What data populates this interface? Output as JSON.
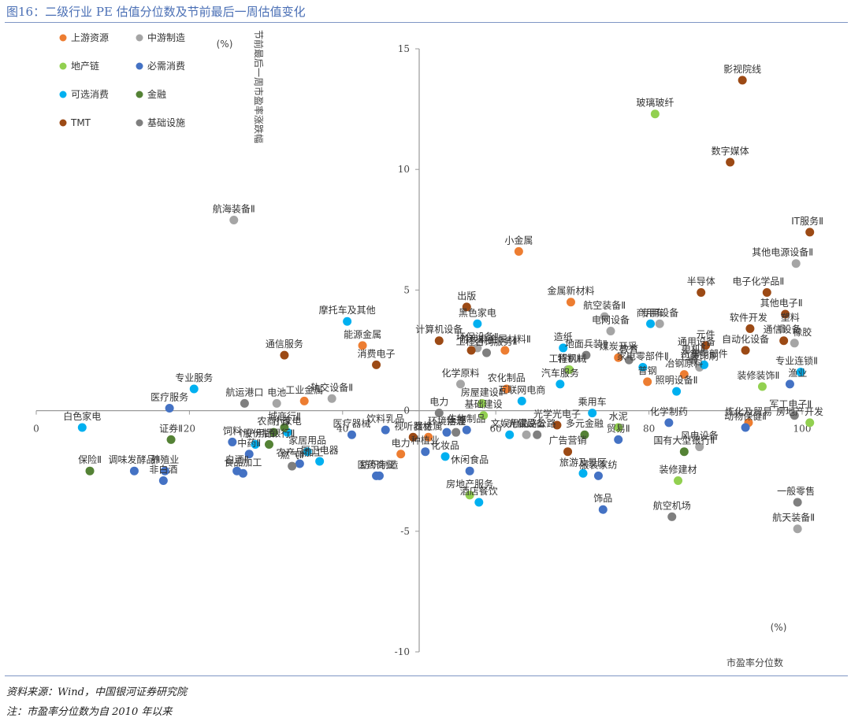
{
  "figure_title": "图16：二级行业 PE 估值分位数及节前最后一周估值变化",
  "footnotes": {
    "source": "资料来源：Wind，中国银河证券研究院",
    "note": "注：市盈率分位数为自 2010 年以来"
  },
  "colors": {
    "上游资源": "#ed7d31",
    "中游制造": "#a5a5a5",
    "地产链": "#92d050",
    "必需消费": "#4472c4",
    "可选消费": "#00b0f0",
    "金融": "#548235",
    "TMT": "#9c4a15",
    "基础设施": "#7f7f7f",
    "axis": "#999999"
  },
  "chart_data": {
    "type": "scatter",
    "xlabel": "市盈率分位数",
    "ylabel": "节前最后一周市盈率涨跌幅",
    "x_unit": "(%)",
    "y_unit": "(%)",
    "xlim": [
      0,
      100
    ],
    "ylim": [
      -10,
      15
    ],
    "x_ticks": [
      "0",
      "20",
      "40",
      "60",
      "80",
      "100"
    ],
    "y_ticks": [
      "15",
      "10",
      "5",
      "0",
      "-5",
      "-10"
    ],
    "legend_position": "top-left",
    "legend": [
      "上游资源",
      "中游制造",
      "地产链",
      "必需消费",
      "可选消费",
      "金融",
      "TMT",
      "基础设施"
    ],
    "series": [
      {
        "name": "上游资源",
        "points": [
          {
            "label": "小金属",
            "x": 63,
            "y": 6.6
          },
          {
            "label": "金属新材料",
            "x": 69.8,
            "y": 4.5
          },
          {
            "label": "能源金属",
            "x": 42.6,
            "y": 2.7
          },
          {
            "label": "工业金属",
            "x": 35,
            "y": 0.4
          },
          {
            "label": "贵金属",
            "x": 51.2,
            "y": -1.1
          },
          {
            "label": "普钢",
            "x": 79.8,
            "y": 1.2
          },
          {
            "label": "冶钢原料",
            "x": 84.6,
            "y": 1.5
          },
          {
            "label": "煤炭开采",
            "x": 76,
            "y": 2.2
          },
          {
            "label": "炼化及贸易",
            "x": 93,
            "y": -0.5
          },
          {
            "label": "农化制品",
            "x": 61.4,
            "y": 0.9
          },
          {
            "label": "非金属材料Ⅱ",
            "x": 61.2,
            "y": 2.5
          },
          {
            "label": "电力",
            "x": 47.6,
            "y": -1.8
          }
        ]
      },
      {
        "name": "中游制造",
        "points": [
          {
            "label": "航海装备Ⅱ",
            "x": 25.8,
            "y": 7.9
          },
          {
            "label": "其他电源设备Ⅱ",
            "x": 99.2,
            "y": 6.1
          },
          {
            "label": "航空装备Ⅱ",
            "x": 74.2,
            "y": 3.9
          },
          {
            "label": "电网设备",
            "x": 75,
            "y": 3.3
          },
          {
            "label": "塑料",
            "x": 97.4,
            "y": 3.4
          },
          {
            "label": "橡胶",
            "x": 99,
            "y": 2.8
          },
          {
            "label": "通用设备",
            "x": 86.2,
            "y": 2.4
          },
          {
            "label": "电机Ⅱ",
            "x": 85.8,
            "y": 2.1
          },
          {
            "label": "轨交设备Ⅱ",
            "x": 38.6,
            "y": 0.5
          },
          {
            "label": "电池",
            "x": 31.4,
            "y": 0.3
          },
          {
            "label": "工程机械",
            "x": 69.4,
            "y": 1.7
          },
          {
            "label": "专用设备",
            "x": 81.4,
            "y": 3.6
          },
          {
            "label": "环保设备Ⅱ",
            "x": 57.6,
            "y": 2.6
          },
          {
            "label": "风电设备",
            "x": 86.6,
            "y": -1.5
          },
          {
            "label": "光伏设备",
            "x": 64,
            "y": -1
          },
          {
            "label": "化学原料",
            "x": 55.4,
            "y": 1.1
          },
          {
            "label": "包装印刷",
            "x": 86.6,
            "y": 1.8
          },
          {
            "label": "航天装备Ⅱ",
            "x": 99.4,
            "y": -4.9
          }
        ]
      },
      {
        "name": "地产链",
        "points": [
          {
            "label": "玻璃玻纤",
            "x": 80.8,
            "y": 12.3
          },
          {
            "label": "装修装饰Ⅱ",
            "x": 94.8,
            "y": 1
          },
          {
            "label": "房地产开发",
            "x": 101,
            "y": -0.5
          },
          {
            "label": "装修建材",
            "x": 83.8,
            "y": -2.9
          },
          {
            "label": "房地产服务",
            "x": 56.6,
            "y": -3.5
          },
          {
            "label": "房屋建设Ⅱ",
            "x": 58.2,
            "y": 0.3
          },
          {
            "label": "基础建设",
            "x": 58.4,
            "y": -0.2
          },
          {
            "label": "水泥",
            "x": 76,
            "y": -0.7
          },
          {
            "label": "特钢Ⅱ",
            "x": 69.6,
            "y": 1.7
          }
        ]
      },
      {
        "name": "必需消费",
        "points": [
          {
            "label": "医疗服务",
            "x": 17.4,
            "y": 0.1
          },
          {
            "label": "调味发酵品Ⅱ",
            "x": 12.8,
            "y": -2.5
          },
          {
            "label": "养殖业",
            "x": 16.8,
            "y": -2.5
          },
          {
            "label": "非白酒",
            "x": 16.6,
            "y": -2.9
          },
          {
            "label": "白酒Ⅱ",
            "x": 26.2,
            "y": -2.5
          },
          {
            "label": "食品加工",
            "x": 27,
            "y": -2.6
          },
          {
            "label": "中药Ⅱ",
            "x": 27.8,
            "y": -1.8
          },
          {
            "label": "饲料",
            "x": 25.6,
            "y": -1.3
          },
          {
            "label": "农产品加工",
            "x": 34.4,
            "y": -2.2
          },
          {
            "label": "纺织制造",
            "x": 44.8,
            "y": -2.7
          },
          {
            "label": "医药商业",
            "x": 44.4,
            "y": -2.7
          },
          {
            "label": "饮料乳品",
            "x": 45.6,
            "y": -0.8
          },
          {
            "label": "医疗器械",
            "x": 41.2,
            "y": -1
          },
          {
            "label": "生物制品",
            "x": 56.2,
            "y": -0.8
          },
          {
            "label": "休闲食品",
            "x": 56.6,
            "y": -2.5
          },
          {
            "label": "饰品",
            "x": 74,
            "y": -4.1
          },
          {
            "label": "服装家纺",
            "x": 73.4,
            "y": -2.7
          },
          {
            "label": "贸易Ⅱ",
            "x": 76,
            "y": -1.2
          },
          {
            "label": "化学制药",
            "x": 82.6,
            "y": -0.5
          },
          {
            "label": "动物保健Ⅱ",
            "x": 92.6,
            "y": -0.7
          },
          {
            "label": "渔业",
            "x": 98.4,
            "y": 1.1
          },
          {
            "label": "环境治理",
            "x": 53.6,
            "y": -0.9
          },
          {
            "label": "种植业",
            "x": 50.8,
            "y": -1.7
          }
        ]
      },
      {
        "name": "可选消费",
        "points": [
          {
            "label": "白色家电",
            "x": 6,
            "y": -0.7
          },
          {
            "label": "专业服务",
            "x": 20.6,
            "y": 0.9
          },
          {
            "label": "摩托车及其他",
            "x": 40.6,
            "y": 3.7
          },
          {
            "label": "黑色家电",
            "x": 57.6,
            "y": 3.6
          },
          {
            "label": "造纸",
            "x": 68.8,
            "y": 2.6
          },
          {
            "label": "汽车服务",
            "x": 68.4,
            "y": 1.1
          },
          {
            "label": "专业连锁Ⅱ",
            "x": 99.8,
            "y": 1.6
          },
          {
            "label": "商用车",
            "x": 80.2,
            "y": 3.6
          },
          {
            "label": "汽车零部件",
            "x": 87.2,
            "y": 1.9
          },
          {
            "label": "家电零部件Ⅱ",
            "x": 79.2,
            "y": 1.8
          },
          {
            "label": "照明设备Ⅱ",
            "x": 83.6,
            "y": 0.8
          },
          {
            "label": "乘用车",
            "x": 72.6,
            "y": -0.1
          },
          {
            "label": "文娱用品",
            "x": 61.8,
            "y": -1
          },
          {
            "label": "小家电",
            "x": 32.8,
            "y": -0.9
          },
          {
            "label": "家居用品",
            "x": 35.4,
            "y": -1.7
          },
          {
            "label": "厨卫电器",
            "x": 37,
            "y": -2.1
          },
          {
            "label": "个护用品",
            "x": 28.6,
            "y": -1.4
          },
          {
            "label": "化妆品",
            "x": 53.4,
            "y": -1.9
          },
          {
            "label": "酒店餐饮",
            "x": 57.8,
            "y": -3.8
          },
          {
            "label": "旅游及景区",
            "x": 71.4,
            "y": -2.6
          },
          {
            "label": "互联网电商",
            "x": 63.4,
            "y": 0.4
          }
        ]
      },
      {
        "name": "金融",
        "points": [
          {
            "label": "证券Ⅱ",
            "x": 17.6,
            "y": -1.2
          },
          {
            "label": "保险Ⅱ",
            "x": 7,
            "y": -2.5
          },
          {
            "label": "农商行Ⅱ",
            "x": 31,
            "y": -0.9
          },
          {
            "label": "城商行Ⅱ",
            "x": 32.4,
            "y": -0.7
          },
          {
            "label": "股份制银行Ⅱ",
            "x": 30.4,
            "y": -1.4
          },
          {
            "label": "多元金融",
            "x": 71.6,
            "y": -1
          },
          {
            "label": "国有大型银行Ⅱ",
            "x": 84.6,
            "y": -1.7
          }
        ]
      },
      {
        "name": "TMT",
        "points": [
          {
            "label": "影视院线",
            "x": 92.2,
            "y": 13.7
          },
          {
            "label": "数字媒体",
            "x": 90.6,
            "y": 10.3
          },
          {
            "label": "IT服务Ⅱ",
            "x": 101,
            "y": 7.4
          },
          {
            "label": "半导体",
            "x": 86.8,
            "y": 4.9
          },
          {
            "label": "电子化学品Ⅱ",
            "x": 95.4,
            "y": 4.9
          },
          {
            "label": "其他电子Ⅱ",
            "x": 97.8,
            "y": 4
          },
          {
            "label": "软件开发",
            "x": 93.2,
            "y": 3.4
          },
          {
            "label": "通信设备",
            "x": 97.6,
            "y": 2.9
          },
          {
            "label": "自动化设备",
            "x": 92.6,
            "y": 2.5
          },
          {
            "label": "元件",
            "x": 87.4,
            "y": 2.7
          },
          {
            "label": "出版",
            "x": 56.2,
            "y": 4.3
          },
          {
            "label": "计算机设备",
            "x": 52.6,
            "y": 2.9
          },
          {
            "label": "游戏Ⅱ",
            "x": 56.8,
            "y": 2.5
          },
          {
            "label": "通信服务",
            "x": 32.4,
            "y": 2.3
          },
          {
            "label": "消费电子",
            "x": 44.4,
            "y": 1.9
          },
          {
            "label": "光学光电子",
            "x": 68,
            "y": -0.6
          },
          {
            "label": "广告营销",
            "x": 69.4,
            "y": -1.7
          },
          {
            "label": "视听器材",
            "x": 49.2,
            "y": -1.1
          }
        ]
      },
      {
        "name": "基础设施",
        "points": [
          {
            "label": "航运港口",
            "x": 27.2,
            "y": 0.3
          },
          {
            "label": "燃气Ⅱ",
            "x": 33.4,
            "y": -2.3
          },
          {
            "label": "工程咨询服务Ⅱ",
            "x": 58.8,
            "y": 2.4
          },
          {
            "label": "铁路公路",
            "x": 65.4,
            "y": -1
          },
          {
            "label": "物流",
            "x": 54.8,
            "y": -0.9
          },
          {
            "label": "电力",
            "x": 52.6,
            "y": -0.1
          },
          {
            "label": "航空机场",
            "x": 83,
            "y": -4.4
          },
          {
            "label": "地面兵装Ⅱ",
            "x": 71.8,
            "y": 2.3
          },
          {
            "label": "教育",
            "x": 77.4,
            "y": 2.1
          },
          {
            "label": "一般零售",
            "x": 99.4,
            "y": -3.8
          },
          {
            "label": "军工电子Ⅱ",
            "x": 99,
            "y": -0.2
          }
        ]
      }
    ]
  }
}
